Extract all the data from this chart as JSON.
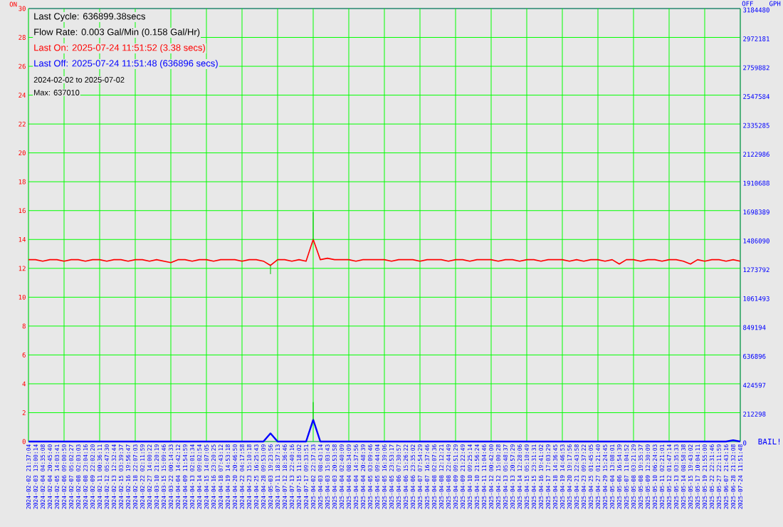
{
  "chart_data": {
    "type": "line",
    "ylabel": "ON",
    "y2label": "OFF",
    "annotations": [
      "Last Cycle: 636899.38secs",
      "Flow Rate: 0.003 Gal/Min (0.158 Gal/Hr)",
      "Last On: 2025-07-24 11:51:52 (3.38 secs)",
      "Last Off: 2025-07-24 11:51:48 (636896 secs)",
      "2024-02-02 to 2025-07-02",
      "Max: 637010",
      "GPH",
      "BAIL!"
    ],
    "categories": [
      "2024-02-02 21:37:04",
      "2024-02-03 13:00:14",
      "2024-02-04 04:35:08",
      "2024-02-04 20:45:40",
      "2024-02-05 14:03:41",
      "2024-02-06 09:00:50",
      "2024-02-07 05:02:27",
      "2024-02-08 02:03:03",
      "2024-02-08 23:04:16",
      "2024-02-09 22:02:20",
      "2024-02-11 00:36:11",
      "2024-02-12 05:47:30",
      "2024-02-13 12:32:44",
      "2024-02-15 03:39:37",
      "2024-02-16 19:56:47",
      "2024-02-18 22:07:03",
      "2024-02-22 02:11:59",
      "2024-02-27 14:00:22",
      "2024-03-10 21:20:19",
      "2024-03-15 15:09:46",
      "2024-03-22 00:14:33",
      "2024-04-04 14:42:12",
      "2024-04-09 11:54:59",
      "2024-04-13 02:01:34",
      "2024-04-14 09:02:54",
      "2024-04-15 14:07:05",
      "2024-04-16 23:20:25",
      "2024-04-18 07:43:12",
      "2024-04-19 14:53:18",
      "2024-04-20 20:46:50",
      "2024-04-22 04:17:58",
      "2024-04-23 15:10:18",
      "2024-04-25 16:25:43",
      "2024-04-28 09:53:09",
      "2024-05-03 19:23:56",
      "2024-07-11 18:37:13",
      "2024-07-12 18:36:46",
      "2024-07-13 22:40:16",
      "2024-07-15 11:18:02",
      "2024-07-17 09:33:51",
      "2025-04-02 22:37:33",
      "2025-04-03 08:43:14",
      "2025-04-03 15:03:43",
      "2025-04-03 20:53:58",
      "2025-04-04 02:40:09",
      "2025-04-04 08:34:09",
      "2025-04-04 14:37:56",
      "2025-04-04 20:48:39",
      "2025-04-05 03:09:46",
      "2025-04-05 09:44:04",
      "2025-04-05 16:39:06",
      "2025-04-05 23:53:17",
      "2025-04-06 07:30:57",
      "2025-04-06 15:26:22",
      "2025-04-06 23:35:02",
      "2025-04-07 07:54:29",
      "2025-04-07 16:37:46",
      "2025-04-08 02:07:36",
      "2025-04-08 12:12:21",
      "2025-04-08 22:44:49",
      "2025-04-09 09:51:29",
      "2025-04-09 21:22:49",
      "2025-04-10 09:25:14",
      "2025-04-10 21:56:24",
      "2025-04-11 11:04:46",
      "2025-04-12 00:42:00",
      "2025-04-12 15:00:28",
      "2025-04-13 05:48:37",
      "2025-04-13 20:57:29",
      "2025-04-14 12:28:06",
      "2025-04-15 05:10:49",
      "2025-04-15 23:31:31",
      "2025-04-16 19:41:02",
      "2025-04-17 17:03:29",
      "2025-04-18 14:36:45",
      "2025-04-19 14:46:53",
      "2025-04-20 19:17:56",
      "2025-04-21 22:43:58",
      "2025-04-23 09:37:22",
      "2025-04-25 01:45:05",
      "2025-04-27 01:21:40",
      "2025-04-29 15:24:45",
      "2025-05-04 13:08:01",
      "2025-05-06 16:54:39",
      "2025-05-07 11:04:52",
      "2025-05-08 03:21:29",
      "2025-05-08 19:35:37",
      "2025-05-09 12:30:09",
      "2025-05-10 06:24:03",
      "2025-05-11 02:21:01",
      "2025-05-12 01:47:14",
      "2025-05-13 03:35:33",
      "2025-05-14 08:58:38",
      "2025-05-15 19:43:02",
      "2025-05-17 10:04:11",
      "2025-05-19 21:55:00",
      "2025-05-22 22:31:46",
      "2025-05-27 22:11:59",
      "2025-06-07 21:43:16",
      "2025-06-28 21:32:08",
      "2025-07-24 11:51:48"
    ],
    "series": [
      {
        "color": "#ff0000",
        "values": [
          12.6,
          12.6,
          12.5,
          12.6,
          12.6,
          12.5,
          12.6,
          12.6,
          12.5,
          12.6,
          12.6,
          12.5,
          12.6,
          12.6,
          12.5,
          12.6,
          12.6,
          12.5,
          12.6,
          12.5,
          12.4,
          12.6,
          12.6,
          12.5,
          12.6,
          12.6,
          12.5,
          12.6,
          12.6,
          12.6,
          12.5,
          12.6,
          12.6,
          12.5,
          12.2,
          12.6,
          12.6,
          12.5,
          12.6,
          12.5,
          14.0,
          12.6,
          12.7,
          12.6,
          12.6,
          12.6,
          12.5,
          12.6,
          12.6,
          12.6,
          12.6,
          12.5,
          12.6,
          12.6,
          12.6,
          12.5,
          12.6,
          12.6,
          12.6,
          12.5,
          12.6,
          12.6,
          12.5,
          12.6,
          12.6,
          12.6,
          12.5,
          12.6,
          12.6,
          12.5,
          12.6,
          12.6,
          12.5,
          12.6,
          12.6,
          12.6,
          12.5,
          12.6,
          12.5,
          12.6,
          12.6,
          12.5,
          12.6,
          12.3,
          12.6,
          12.6,
          12.5,
          12.6,
          12.6,
          12.5,
          12.6,
          12.6,
          12.5,
          12.3,
          12.6,
          12.5,
          12.6,
          12.6,
          12.5,
          12.6,
          12.5
        ],
        "errors": [
          null,
          null,
          null,
          null,
          null,
          null,
          null,
          null,
          null,
          null,
          null,
          null,
          null,
          null,
          null,
          null,
          null,
          null,
          null,
          null,
          null,
          null,
          null,
          null,
          null,
          null,
          null,
          null,
          null,
          null,
          null,
          null,
          null,
          null,
          [
            11.6,
            12.2
          ],
          null,
          null,
          null,
          null,
          null,
          [
            14.0,
            15.9
          ],
          null,
          null,
          null,
          null,
          null,
          null,
          null,
          null,
          null,
          null,
          null,
          null,
          null,
          null,
          null,
          null,
          null,
          null,
          null,
          null,
          null,
          null,
          null,
          null,
          null,
          null,
          null,
          null,
          null,
          null,
          null,
          null,
          null,
          null,
          null,
          null,
          null,
          null,
          null,
          null,
          null,
          null,
          null,
          null,
          null,
          null,
          null,
          null,
          null,
          null,
          null,
          null,
          null,
          null,
          null,
          null,
          null,
          null,
          null,
          null
        ]
      },
      {
        "color": "#0000ff",
        "axis": "y2",
        "values": [
          0,
          0,
          0,
          0,
          0,
          0,
          0,
          0,
          0,
          0,
          0,
          0,
          0,
          0,
          0,
          0,
          0,
          0,
          0,
          0,
          0,
          0,
          0,
          0,
          0,
          0,
          0,
          0,
          0,
          0,
          0,
          0,
          0,
          0,
          60000,
          0,
          0,
          0,
          0,
          0,
          160000,
          0,
          0,
          0,
          0,
          0,
          0,
          0,
          0,
          0,
          0,
          0,
          0,
          0,
          0,
          0,
          0,
          0,
          0,
          0,
          0,
          0,
          0,
          0,
          0,
          0,
          0,
          0,
          0,
          0,
          0,
          0,
          0,
          0,
          0,
          0,
          0,
          0,
          0,
          0,
          0,
          0,
          0,
          0,
          0,
          0,
          0,
          0,
          0,
          0,
          0,
          0,
          0,
          0,
          0,
          0,
          0,
          0,
          0,
          10000,
          0
        ],
        "errors": [
          null,
          null,
          null,
          null,
          null,
          null,
          null,
          null,
          null,
          null,
          null,
          null,
          null,
          null,
          null,
          null,
          null,
          null,
          null,
          null,
          null,
          null,
          null,
          null,
          null,
          null,
          null,
          null,
          null,
          null,
          null,
          null,
          null,
          null,
          null,
          null,
          null,
          null,
          null,
          null,
          [
            160000,
            290000
          ],
          null,
          null,
          null,
          null,
          null,
          null,
          null,
          null,
          null,
          null,
          null,
          null,
          null,
          null,
          null,
          null,
          null,
          null,
          null,
          null,
          null,
          null,
          null,
          null,
          null,
          null,
          null,
          null,
          null,
          null,
          null,
          null,
          null,
          null,
          null,
          null,
          null,
          null,
          null,
          null,
          null,
          null,
          null,
          null,
          null,
          null,
          null,
          null,
          null,
          null,
          null,
          null,
          null,
          null,
          null,
          null,
          null,
          null,
          null,
          null
        ]
      }
    ],
    "ylim": [
      0,
      30
    ],
    "yticks": [
      0,
      2,
      4,
      6,
      8,
      10,
      12,
      14,
      16,
      18,
      20,
      22,
      24,
      26,
      28,
      30
    ],
    "y2lim": [
      0,
      3184480
    ],
    "y2ticks": [
      0,
      212298,
      424597,
      636896,
      849194,
      1061493,
      1273792,
      1486090,
      1698389,
      1910688,
      2122986,
      2335285,
      2547584,
      2759882,
      2972181,
      3184480
    ],
    "grid": true
  }
}
